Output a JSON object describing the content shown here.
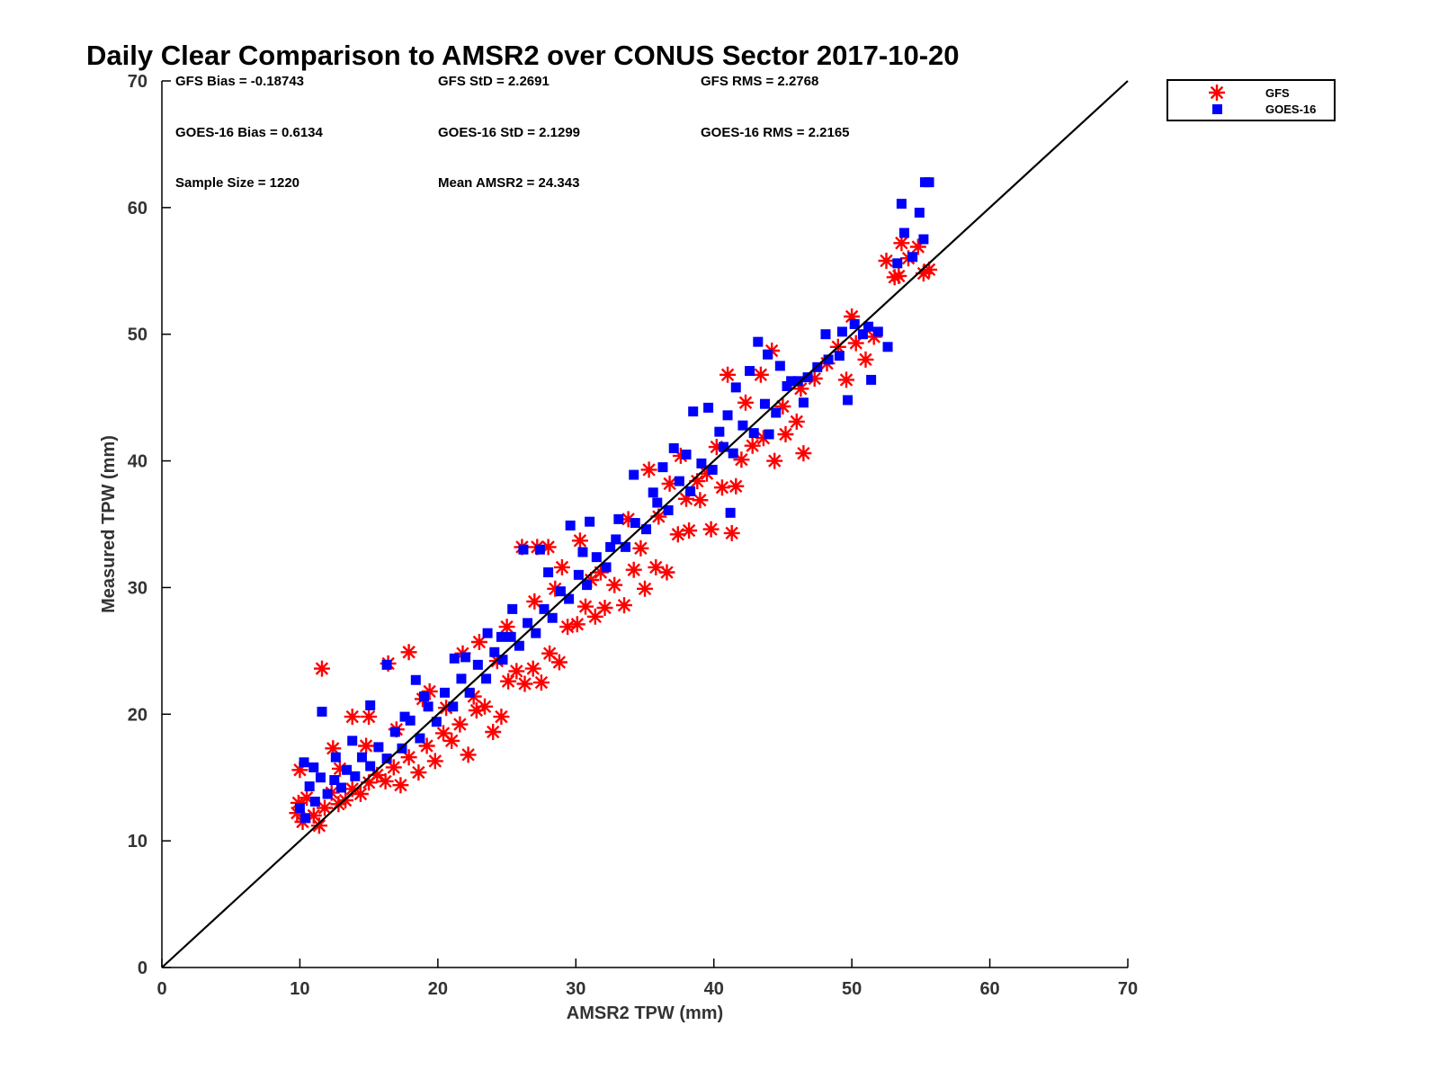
{
  "chart_data": {
    "type": "scatter",
    "title": "Daily Clear Comparison to AMSR2 over CONUS Sector 2017-10-20",
    "xlabel": "AMSR2 TPW (mm)",
    "ylabel": "Measured TPW (mm)",
    "xlim": [
      0,
      70
    ],
    "ylim": [
      0,
      70
    ],
    "x_ticks": [
      "0",
      "10",
      "20",
      "30",
      "40",
      "50",
      "60",
      "70"
    ],
    "y_ticks": [
      "0",
      "10",
      "20",
      "30",
      "40",
      "50",
      "60",
      "70"
    ],
    "grid": false,
    "legend_position": "top-right outside",
    "reference_line": {
      "from": [
        0,
        0
      ],
      "to": [
        70,
        70
      ],
      "color": "#000000"
    },
    "stats": {
      "gfs_bias": "GFS Bias = -0.18743",
      "gfs_std": "GFS StD = 2.2691",
      "gfs_rms": "GFS RMS = 2.2768",
      "goes_bias": "GOES-16 Bias = 0.6134",
      "goes_std": "GOES-16 StD = 2.1299",
      "goes_rms": "GOES-16 RMS = 2.2165",
      "sample_size": "Sample Size = 1220",
      "mean_amsr2": "Mean AMSR2 = 24.343"
    },
    "series": [
      {
        "name": "GFS",
        "marker": "asterisk",
        "color": "#ff0000",
        "points": [
          [
            9.8,
            12.2
          ],
          [
            10.2,
            11.5
          ],
          [
            10.5,
            13.4
          ],
          [
            11.0,
            12.0
          ],
          [
            11.4,
            11.2
          ],
          [
            11.8,
            12.6
          ],
          [
            12.3,
            13.8
          ],
          [
            12.8,
            12.9
          ],
          [
            13.3,
            13.2
          ],
          [
            13.8,
            14.1
          ],
          [
            14.4,
            13.7
          ],
          [
            15.0,
            14.6
          ],
          [
            15.6,
            15.2
          ],
          [
            16.2,
            14.7
          ],
          [
            16.8,
            15.8
          ],
          [
            17.3,
            14.4
          ],
          [
            17.9,
            16.6
          ],
          [
            18.6,
            15.4
          ],
          [
            19.2,
            17.5
          ],
          [
            19.8,
            16.3
          ],
          [
            20.4,
            18.5
          ],
          [
            21.0,
            17.9
          ],
          [
            21.6,
            19.2
          ],
          [
            22.2,
            16.8
          ],
          [
            22.8,
            20.3
          ],
          [
            23.4,
            20.6
          ],
          [
            24.0,
            18.6
          ],
          [
            24.6,
            19.8
          ],
          [
            25.1,
            22.6
          ],
          [
            25.7,
            23.4
          ],
          [
            26.3,
            22.4
          ],
          [
            26.9,
            23.6
          ],
          [
            27.5,
            22.5
          ],
          [
            28.1,
            24.8
          ],
          [
            28.8,
            24.1
          ],
          [
            29.4,
            26.9
          ],
          [
            30.1,
            27.1
          ],
          [
            30.7,
            28.5
          ],
          [
            31.4,
            27.7
          ],
          [
            32.1,
            28.4
          ],
          [
            32.8,
            30.2
          ],
          [
            33.5,
            28.6
          ],
          [
            34.2,
            31.4
          ],
          [
            35.0,
            29.9
          ],
          [
            35.8,
            31.6
          ],
          [
            36.6,
            31.2
          ],
          [
            37.4,
            34.2
          ],
          [
            38.2,
            34.5
          ],
          [
            39.0,
            36.9
          ],
          [
            39.8,
            34.6
          ],
          [
            40.6,
            37.9
          ],
          [
            41.3,
            34.3
          ],
          [
            42.0,
            40.1
          ],
          [
            42.8,
            41.2
          ],
          [
            43.6,
            41.8
          ],
          [
            44.4,
            40.0
          ],
          [
            45.2,
            42.1
          ],
          [
            46.0,
            43.1
          ],
          [
            46.5,
            40.6
          ],
          [
            47.3,
            46.5
          ],
          [
            48.2,
            47.7
          ],
          [
            49.0,
            49.0
          ],
          [
            49.6,
            46.4
          ],
          [
            50.3,
            49.3
          ],
          [
            51.0,
            48.0
          ],
          [
            51.6,
            49.8
          ],
          [
            52.5,
            55.8
          ],
          [
            53.1,
            54.5
          ],
          [
            53.6,
            57.2
          ],
          [
            54.1,
            56.0
          ],
          [
            54.8,
            56.9
          ],
          [
            55.2,
            54.8
          ],
          [
            11.6,
            23.6
          ],
          [
            16.4,
            24.0
          ],
          [
            17.9,
            24.9
          ],
          [
            13.8,
            19.8
          ],
          [
            15.0,
            19.8
          ],
          [
            26.1,
            33.2
          ],
          [
            27.2,
            33.2
          ],
          [
            28.0,
            33.2
          ],
          [
            12.4,
            17.3
          ],
          [
            12.9,
            15.7
          ],
          [
            18.9,
            21.2
          ],
          [
            21.8,
            24.8
          ],
          [
            23.0,
            25.7
          ],
          [
            24.3,
            24.2
          ],
          [
            27.0,
            28.9
          ],
          [
            29.0,
            31.6
          ],
          [
            30.3,
            33.7
          ],
          [
            31.8,
            31.2
          ],
          [
            33.8,
            35.4
          ],
          [
            35.3,
            39.3
          ],
          [
            36.8,
            38.2
          ],
          [
            37.6,
            40.4
          ],
          [
            38.8,
            38.4
          ],
          [
            40.2,
            41.1
          ],
          [
            41.0,
            46.8
          ],
          [
            42.3,
            44.6
          ],
          [
            43.4,
            46.8
          ],
          [
            44.2,
            48.7
          ],
          [
            45.0,
            44.3
          ],
          [
            46.3,
            45.7
          ],
          [
            22.6,
            21.4
          ],
          [
            20.6,
            20.5
          ],
          [
            19.4,
            21.8
          ],
          [
            14.8,
            17.5
          ],
          [
            17.0,
            18.8
          ],
          [
            25.0,
            26.9
          ],
          [
            28.5,
            29.9
          ],
          [
            31.1,
            30.6
          ],
          [
            34.7,
            33.1
          ],
          [
            36.0,
            35.6
          ],
          [
            38.0,
            37.0
          ],
          [
            39.5,
            39.0
          ],
          [
            41.6,
            38.0
          ],
          [
            50.0,
            51.4
          ],
          [
            53.4,
            54.6
          ],
          [
            55.6,
            55.1
          ],
          [
            10.0,
            15.6
          ],
          [
            9.9,
            13.0
          ]
        ]
      },
      {
        "name": "GOES-16",
        "marker": "square",
        "color": "#0000ff",
        "points": [
          [
            10.0,
            12.6
          ],
          [
            10.4,
            11.8
          ],
          [
            10.7,
            14.3
          ],
          [
            11.1,
            13.1
          ],
          [
            11.5,
            15.0
          ],
          [
            12.0,
            13.7
          ],
          [
            12.5,
            14.8
          ],
          [
            13.0,
            14.2
          ],
          [
            13.4,
            15.6
          ],
          [
            14.0,
            15.1
          ],
          [
            14.5,
            16.6
          ],
          [
            15.1,
            15.9
          ],
          [
            15.7,
            17.4
          ],
          [
            16.3,
            16.5
          ],
          [
            16.9,
            18.6
          ],
          [
            17.4,
            17.3
          ],
          [
            18.0,
            19.5
          ],
          [
            18.7,
            18.1
          ],
          [
            19.3,
            20.6
          ],
          [
            19.9,
            19.4
          ],
          [
            20.5,
            21.7
          ],
          [
            21.1,
            20.6
          ],
          [
            21.7,
            22.8
          ],
          [
            22.3,
            21.7
          ],
          [
            22.9,
            23.9
          ],
          [
            23.5,
            22.8
          ],
          [
            24.1,
            24.9
          ],
          [
            24.7,
            24.3
          ],
          [
            25.3,
            26.1
          ],
          [
            25.9,
            25.4
          ],
          [
            26.5,
            27.2
          ],
          [
            27.1,
            26.4
          ],
          [
            27.7,
            28.3
          ],
          [
            28.3,
            27.6
          ],
          [
            28.9,
            29.7
          ],
          [
            29.5,
            29.1
          ],
          [
            30.2,
            31.0
          ],
          [
            30.8,
            30.2
          ],
          [
            31.5,
            32.4
          ],
          [
            32.2,
            31.6
          ],
          [
            32.9,
            33.8
          ],
          [
            33.6,
            33.2
          ],
          [
            34.3,
            35.1
          ],
          [
            35.1,
            34.6
          ],
          [
            35.9,
            36.7
          ],
          [
            36.7,
            36.1
          ],
          [
            37.5,
            38.4
          ],
          [
            38.3,
            37.6
          ],
          [
            39.1,
            39.8
          ],
          [
            39.9,
            39.3
          ],
          [
            40.7,
            41.1
          ],
          [
            41.4,
            40.6
          ],
          [
            42.1,
            42.8
          ],
          [
            42.9,
            42.2
          ],
          [
            43.7,
            44.5
          ],
          [
            44.5,
            43.8
          ],
          [
            45.3,
            45.9
          ],
          [
            46.1,
            46.3
          ],
          [
            46.8,
            46.6
          ],
          [
            47.5,
            47.4
          ],
          [
            48.3,
            48.0
          ],
          [
            49.1,
            48.3
          ],
          [
            49.7,
            44.8
          ],
          [
            50.2,
            50.8
          ],
          [
            50.8,
            50.0
          ],
          [
            51.4,
            46.4
          ],
          [
            51.9,
            50.2
          ],
          [
            52.6,
            49.0
          ],
          [
            53.3,
            55.6
          ],
          [
            53.6,
            60.3
          ],
          [
            53.8,
            58.0
          ],
          [
            54.4,
            56.1
          ],
          [
            54.9,
            59.6
          ],
          [
            55.3,
            62.0
          ],
          [
            55.6,
            62.0
          ],
          [
            55.2,
            57.5
          ],
          [
            11.6,
            20.2
          ],
          [
            16.3,
            23.9
          ],
          [
            15.1,
            20.7
          ],
          [
            26.2,
            33.0
          ],
          [
            27.4,
            33.0
          ],
          [
            12.6,
            16.6
          ],
          [
            18.4,
            22.7
          ],
          [
            21.2,
            24.4
          ],
          [
            23.6,
            26.4
          ],
          [
            29.6,
            34.9
          ],
          [
            31.0,
            35.2
          ],
          [
            32.5,
            33.2
          ],
          [
            34.2,
            38.9
          ],
          [
            35.6,
            37.5
          ],
          [
            37.1,
            41.0
          ],
          [
            38.5,
            43.9
          ],
          [
            39.6,
            44.2
          ],
          [
            41.0,
            43.6
          ],
          [
            41.6,
            45.8
          ],
          [
            42.6,
            47.1
          ],
          [
            43.2,
            49.4
          ],
          [
            43.9,
            48.4
          ],
          [
            44.8,
            47.5
          ],
          [
            45.6,
            46.3
          ],
          [
            48.1,
            50.0
          ],
          [
            49.3,
            50.2
          ],
          [
            51.2,
            50.6
          ],
          [
            19.0,
            21.4
          ],
          [
            22.0,
            24.5
          ],
          [
            25.4,
            28.3
          ],
          [
            28.0,
            31.2
          ],
          [
            30.5,
            32.8
          ],
          [
            33.1,
            35.4
          ],
          [
            36.3,
            39.5
          ],
          [
            38.0,
            40.5
          ],
          [
            40.4,
            42.3
          ],
          [
            41.2,
            35.9
          ],
          [
            44.0,
            42.1
          ],
          [
            46.5,
            44.6
          ],
          [
            10.3,
            16.2
          ],
          [
            11.0,
            15.8
          ],
          [
            13.8,
            17.9
          ],
          [
            17.6,
            19.8
          ],
          [
            24.6,
            26.1
          ]
        ]
      }
    ]
  }
}
